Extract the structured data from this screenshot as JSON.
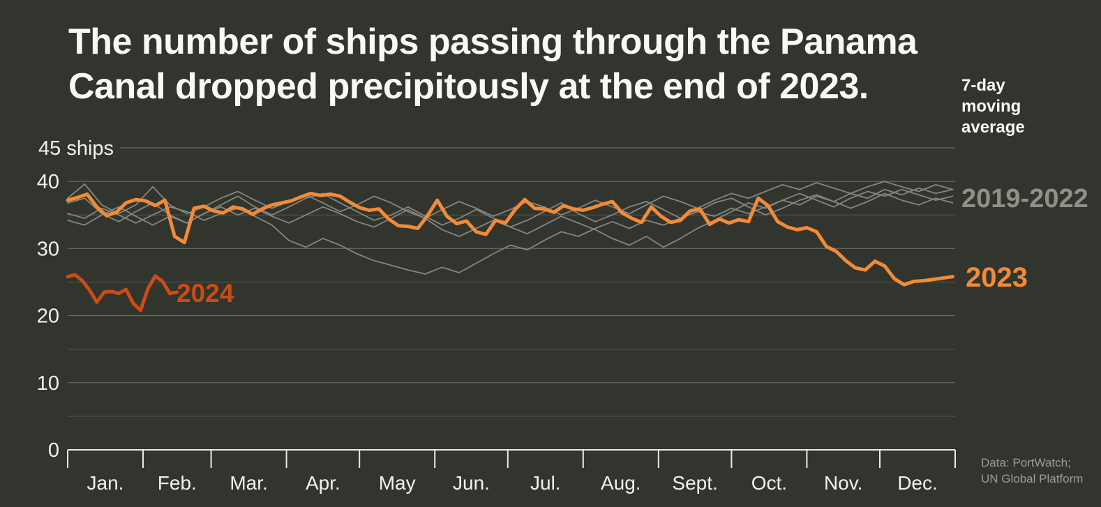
{
  "title": {
    "line1": "The number of ships passing through the Panama",
    "line2": "Canal dropped precipitously at the end of 2023."
  },
  "annotation": "7-day\nmoving\naverage",
  "series_labels": {
    "gray": "2019-2022",
    "y2023": "2023",
    "y2024": "2024"
  },
  "credit": {
    "line1": "Data: PortWatch;",
    "line2": "UN Global Platform"
  },
  "colors": {
    "background": "#31352d",
    "title_text": "#f8f8f4",
    "axis_text": "#f2f2ed",
    "axis": "#ebebe6",
    "grid_major": "#70746a",
    "grid_minor": "#565a50",
    "gray_series": "#84867f",
    "gray_label": "#8f9189",
    "orange_2023": "#f28a38",
    "dark_orange_2024": "#cc4b16",
    "credit_text": "#9a9d95"
  },
  "chart_data": {
    "type": "line",
    "title": "The number of ships passing through the Panama Canal dropped precipitously at the end of 2023.",
    "unit": "ships",
    "smoothing": "7-day moving average",
    "ylim": [
      0,
      45
    ],
    "grid": true,
    "y_ticks": [
      {
        "value": 45,
        "label": "45 ships"
      },
      {
        "value": 40,
        "label": "40"
      },
      {
        "value": 30,
        "label": "30"
      },
      {
        "value": 20,
        "label": "20"
      },
      {
        "value": 10,
        "label": "10"
      },
      {
        "value": 0,
        "label": "0"
      }
    ],
    "y_gridlines": [
      45,
      40,
      35,
      30,
      25,
      20,
      15,
      10,
      5
    ],
    "y_major_gridlines": [
      45,
      40,
      30,
      20,
      10
    ],
    "x_months": [
      "Jan.",
      "Feb.",
      "Mar.",
      "Apr.",
      "May",
      "Jun.",
      "Jul.",
      "Aug.",
      "Sept.",
      "Oct.",
      "Nov.",
      "Dec."
    ],
    "month_days": [
      31,
      28,
      31,
      30,
      31,
      30,
      31,
      31,
      30,
      31,
      30,
      31
    ],
    "series": [
      {
        "name": "2019",
        "group": "2019-2022",
        "color_key": "gray_series",
        "width": 1.8,
        "start_day": 0,
        "step_days": 7,
        "values": [
          36.8,
          37.5,
          35.2,
          34.0,
          35.5,
          36.8,
          35.0,
          33.8,
          35.2,
          36.5,
          37.8,
          36.2,
          35.0,
          36.2,
          37.5,
          38.2,
          36.8,
          35.5,
          34.2,
          35.0,
          36.2,
          34.8,
          33.5,
          34.5,
          35.8,
          34.5,
          33.2,
          34.2,
          35.5,
          36.8,
          35.2,
          34.0,
          35.0,
          36.2,
          37.0,
          35.8,
          34.5,
          35.5,
          36.8,
          37.5,
          36.2,
          35.0,
          36.0,
          37.2,
          38.0,
          37.0,
          36.0,
          37.0,
          38.2,
          37.2,
          36.5,
          37.5,
          36.8
        ]
      },
      {
        "name": "2020",
        "group": "2019-2022",
        "color_key": "gray_series",
        "width": 1.8,
        "start_day": 0,
        "step_days": 7,
        "values": [
          35.2,
          34.5,
          36.0,
          35.0,
          33.8,
          35.0,
          36.2,
          35.5,
          34.2,
          35.2,
          36.0,
          34.8,
          33.5,
          31.2,
          30.2,
          31.5,
          30.5,
          29.2,
          28.2,
          27.5,
          26.8,
          26.2,
          27.2,
          26.4,
          27.8,
          29.2,
          30.5,
          29.8,
          31.2,
          32.5,
          31.8,
          33.0,
          34.0,
          33.0,
          34.2,
          33.5,
          34.5,
          35.5,
          34.8,
          36.0,
          35.2,
          36.2,
          37.2,
          36.5,
          37.8,
          37.0,
          38.2,
          37.5,
          38.8,
          38.0,
          39.0,
          38.2,
          38.8
        ]
      },
      {
        "name": "2021",
        "group": "2019-2022",
        "color_key": "gray_series",
        "width": 1.8,
        "start_day": 0,
        "step_days": 7,
        "values": [
          34.2,
          33.5,
          35.0,
          36.2,
          34.8,
          33.5,
          34.8,
          33.8,
          35.2,
          36.2,
          35.0,
          36.0,
          34.8,
          33.8,
          35.0,
          36.2,
          35.2,
          34.0,
          33.2,
          34.5,
          35.8,
          34.5,
          32.8,
          31.8,
          33.0,
          34.2,
          33.2,
          32.2,
          33.5,
          34.8,
          33.8,
          32.8,
          31.5,
          30.5,
          31.8,
          30.2,
          31.5,
          33.0,
          34.2,
          35.5,
          36.8,
          36.0,
          37.2,
          38.2,
          37.2,
          36.2,
          37.5,
          38.5,
          37.8,
          38.8,
          38.0,
          37.2,
          37.8
        ]
      },
      {
        "name": "2022",
        "group": "2019-2022",
        "color_key": "gray_series",
        "width": 1.8,
        "start_day": 0,
        "step_days": 7,
        "values": [
          37.5,
          39.6,
          36.5,
          35.2,
          36.5,
          39.2,
          36.5,
          35.2,
          36.2,
          37.5,
          38.5,
          37.2,
          36.0,
          37.0,
          38.0,
          36.8,
          35.5,
          36.5,
          37.8,
          36.8,
          35.5,
          34.5,
          35.8,
          37.0,
          36.0,
          34.8,
          35.8,
          37.0,
          36.2,
          35.0,
          36.0,
          37.2,
          36.2,
          35.2,
          36.5,
          37.8,
          37.0,
          36.0,
          37.2,
          38.2,
          37.5,
          38.5,
          39.5,
          38.8,
          39.8,
          39.0,
          38.2,
          39.2,
          40.0,
          39.2,
          38.5,
          39.5,
          38.8
        ]
      },
      {
        "name": "2023",
        "color_key": "orange_2023",
        "width": 5,
        "start_day": 0,
        "step_days": 4,
        "values": [
          37.2,
          37.6,
          38.1,
          36.2,
          34.9,
          35.4,
          36.8,
          37.3,
          37.1,
          36.4,
          37.2,
          31.8,
          30.9,
          36.0,
          36.3,
          35.6,
          35.3,
          36.2,
          35.9,
          35.1,
          35.9,
          36.5,
          36.8,
          37.1,
          37.7,
          38.2,
          37.9,
          38.1,
          37.8,
          36.9,
          36.1,
          35.7,
          35.9,
          34.4,
          33.4,
          33.3,
          33.0,
          34.9,
          37.2,
          34.8,
          33.7,
          34.1,
          32.5,
          32.1,
          34.2,
          33.8,
          35.8,
          37.3,
          36.0,
          35.9,
          35.4,
          36.4,
          35.9,
          35.7,
          36.1,
          36.6,
          37.0,
          35.3,
          34.5,
          33.9,
          36.2,
          34.8,
          33.9,
          34.2,
          35.6,
          35.9,
          33.6,
          34.4,
          33.8,
          34.3,
          34.0,
          37.5,
          36.4,
          34.0,
          33.2,
          32.8,
          33.1,
          32.5,
          30.3,
          29.6,
          28.2,
          27.1,
          26.8,
          28.1,
          27.4,
          25.5,
          24.6,
          25.1,
          25.2,
          25.4,
          25.6,
          25.8
        ]
      },
      {
        "name": "2024",
        "color_key": "dark_orange_2024",
        "width": 5,
        "start_day": 0,
        "step_days": 3,
        "values": [
          25.8,
          26.1,
          25.2,
          23.8,
          22.0,
          23.5,
          23.6,
          23.3,
          23.9,
          21.8,
          20.8,
          24.0,
          25.9,
          25.1,
          23.3,
          23.5
        ]
      }
    ]
  }
}
